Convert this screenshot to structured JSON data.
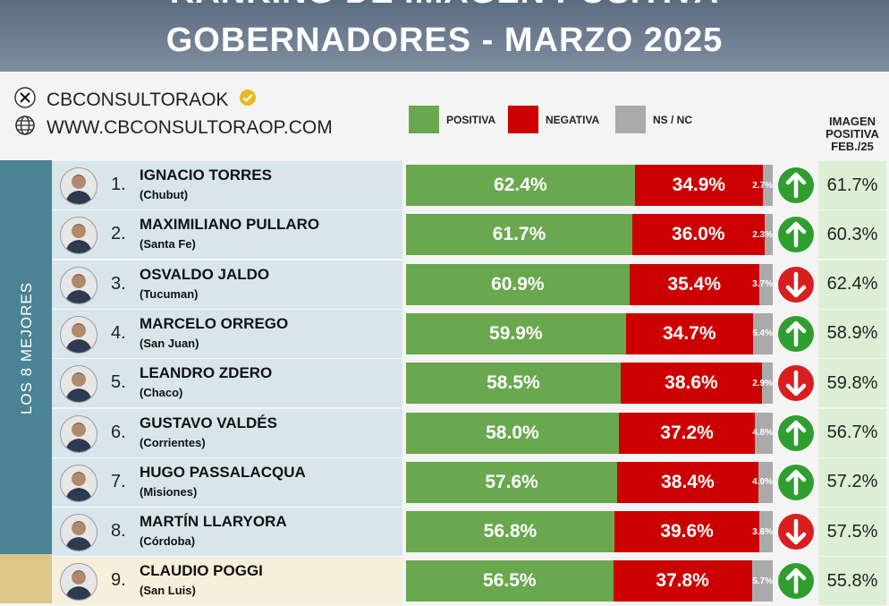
{
  "header": {
    "title_line1": "RANKING DE IMAGEN POSITIVA",
    "title_line2": "GOBERNADORES - MARZO 2025"
  },
  "source": {
    "handle": "CBCONSULTORAOK",
    "website": "WWW.CBCONSULTORAOP.COM"
  },
  "legend": {
    "positive": "POSITIVA",
    "negative": "NEGATIVA",
    "nsnc": "NS / NC"
  },
  "previous_header": "IMAGEN POSITIVA FEB./25",
  "group_label": "LOS 8 MEJORES",
  "colors": {
    "positive": "#6aa84f",
    "negative": "#cc0000",
    "nsnc": "#aaaaaa",
    "up": "#2e9e2e",
    "down": "#d81e1e"
  },
  "chart_data": {
    "type": "bar",
    "stacked": true,
    "orientation": "horizontal",
    "categories": [
      "IGNACIO TORRES",
      "MAXIMILIANO PULLARO",
      "OSVALDO JALDO",
      "MARCELO ORREGO",
      "LEANDRO ZDERO",
      "GUSTAVO VALDÉS",
      "HUGO PASSALACQUA",
      "MARTÍN LLARYORA",
      "CLAUDIO POGGI"
    ],
    "series": [
      {
        "name": "POSITIVA",
        "values": [
          62.4,
          61.7,
          60.9,
          59.9,
          58.5,
          58.0,
          57.6,
          56.8,
          56.5
        ]
      },
      {
        "name": "NEGATIVA",
        "values": [
          34.9,
          36.0,
          35.4,
          34.7,
          38.6,
          37.2,
          38.4,
          39.6,
          37.8
        ]
      },
      {
        "name": "NS / NC",
        "values": [
          2.7,
          2.3,
          3.7,
          5.4,
          2.9,
          4.8,
          4.0,
          3.6,
          5.7
        ]
      }
    ],
    "rows": [
      {
        "rank": "1.",
        "name": "IGNACIO TORRES",
        "province": "(Chubut)",
        "pos": "62.4%",
        "neg": "34.9%",
        "ns": "2.7%",
        "trend": "up",
        "prev": "61.7%"
      },
      {
        "rank": "2.",
        "name": "MAXIMILIANO PULLARO",
        "province": "(Santa Fe)",
        "pos": "61.7%",
        "neg": "36.0%",
        "ns": "2.3%",
        "trend": "up",
        "prev": "60.3%"
      },
      {
        "rank": "3.",
        "name": "OSVALDO JALDO",
        "province": "(Tucuman)",
        "pos": "60.9%",
        "neg": "35.4%",
        "ns": "3.7%",
        "trend": "down",
        "prev": "62.4%"
      },
      {
        "rank": "4.",
        "name": "MARCELO ORREGO",
        "province": "(San Juan)",
        "pos": "59.9%",
        "neg": "34.7%",
        "ns": "5.4%",
        "trend": "up",
        "prev": "58.9%"
      },
      {
        "rank": "5.",
        "name": "LEANDRO ZDERO",
        "province": "(Chaco)",
        "pos": "58.5%",
        "neg": "38.6%",
        "ns": "2.9%",
        "trend": "down",
        "prev": "59.8%"
      },
      {
        "rank": "6.",
        "name": "GUSTAVO VALDÉS",
        "province": "(Corrientes)",
        "pos": "58.0%",
        "neg": "37.2%",
        "ns": "4.8%",
        "trend": "up",
        "prev": "56.7%"
      },
      {
        "rank": "7.",
        "name": "HUGO PASSALACQUA",
        "province": "(Misiones)",
        "pos": "57.6%",
        "neg": "38.4%",
        "ns": "4.0%",
        "trend": "up",
        "prev": "57.2%"
      },
      {
        "rank": "8.",
        "name": "MARTÍN LLARYORA",
        "province": "(Córdoba)",
        "pos": "56.8%",
        "neg": "39.6%",
        "ns": "3.6%",
        "trend": "down",
        "prev": "57.5%"
      },
      {
        "rank": "9.",
        "name": "CLAUDIO POGGI",
        "province": "(San Luis)",
        "pos": "56.5%",
        "neg": "37.8%",
        "ns": "5.7%",
        "trend": "up",
        "prev": "55.8%"
      }
    ]
  }
}
